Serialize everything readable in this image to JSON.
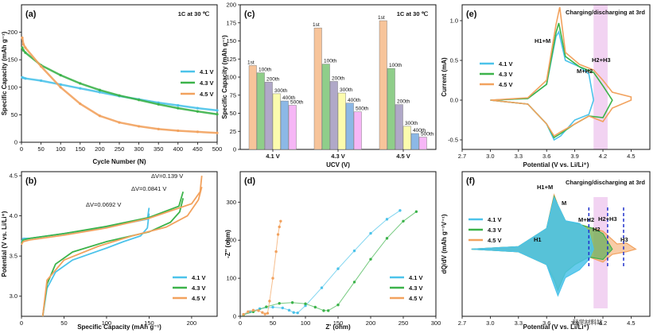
{
  "chart_data": [
    {
      "panel": "(a)",
      "type": "scatter",
      "annotation": "1C at 30 ℃",
      "xlabel": "Cycle Number (N)",
      "ylabel": "Specific Capacity (mAh g⁻¹)",
      "xlim": [
        0,
        500
      ],
      "ylim": [
        0,
        250
      ],
      "xticks": [
        "0",
        "50",
        "100",
        "150",
        "200",
        "250",
        "300",
        "350",
        "400",
        "450",
        "500"
      ],
      "yticks": [
        "0",
        "50",
        "100",
        "150",
        "200"
      ],
      "legend_position": "right",
      "series": [
        {
          "name": "4.1 V",
          "color": "#4cc3ea",
          "x": [
            2,
            5,
            10,
            50,
            100,
            150,
            200,
            250,
            300,
            350,
            400,
            450,
            500
          ],
          "y": [
            118,
            117,
            116,
            112,
            105,
            98,
            91,
            84,
            78,
            72,
            67,
            62,
            58
          ]
        },
        {
          "name": "4.3 V",
          "color": "#3cb34a",
          "x": [
            2,
            5,
            10,
            50,
            100,
            150,
            200,
            250,
            300,
            350,
            400,
            450,
            500
          ],
          "y": [
            172,
            167,
            163,
            140,
            122,
            107,
            95,
            85,
            77,
            69,
            62,
            56,
            51
          ]
        },
        {
          "name": "4.5 V",
          "color": "#f2a25e",
          "x": [
            2,
            5,
            10,
            50,
            100,
            150,
            200,
            250,
            300,
            350,
            400,
            450,
            500
          ],
          "y": [
            190,
            178,
            172,
            138,
            100,
            70,
            48,
            36,
            29,
            24,
            21,
            19,
            17
          ]
        }
      ]
    },
    {
      "panel": "(b)",
      "type": "line",
      "xlabel": "Specific Capacity (mAh g⁻¹)",
      "ylabel": "Potential (V vs. Li/Li⁺)",
      "xlim": [
        0,
        230
      ],
      "ylim": [
        2.75,
        4.55
      ],
      "xticks": [
        "0",
        "50",
        "100",
        "150",
        "200"
      ],
      "yticks": [
        "3.0",
        "3.5",
        "4.0",
        "4.5"
      ],
      "legend_position": "bottom-right",
      "annotations": [
        {
          "text": "ΔV=0.0692 V",
          "color": "#4cc3ea"
        },
        {
          "text": "ΔV=0.0841 V",
          "color": "#3cb34a"
        },
        {
          "text": "ΔV=0.139 V",
          "color": "#f2a25e"
        }
      ],
      "series": [
        {
          "name": "4.1 V",
          "color": "#4cc3ea",
          "charge": {
            "x": [
              0,
              2,
              10,
              50,
              100,
              148,
              150
            ],
            "y": [
              3.68,
              3.72,
              3.72,
              3.78,
              3.86,
              3.96,
              4.1
            ]
          },
          "discharge": {
            "x": [
              150,
              148,
              140,
              120,
              100,
              60,
              40,
              30,
              25
            ],
            "y": [
              4.03,
              3.85,
              3.75,
              3.68,
              3.6,
              3.45,
              3.3,
              3.1,
              2.75
            ]
          }
        },
        {
          "name": "4.3 V",
          "color": "#3cb34a",
          "charge": {
            "x": [
              0,
              2,
              10,
              50,
              100,
              150,
              185,
              190
            ],
            "y": [
              3.66,
              3.7,
              3.72,
              3.78,
              3.87,
              3.98,
              4.12,
              4.3
            ]
          },
          "discharge": {
            "x": [
              190,
              186,
              175,
              150,
              100,
              60,
              40,
              30,
              25
            ],
            "y": [
              4.22,
              4.05,
              3.92,
              3.8,
              3.68,
              3.55,
              3.4,
              3.15,
              2.75
            ]
          }
        },
        {
          "name": "4.5 V",
          "color": "#f2a25e",
          "charge": {
            "x": [
              0,
              2,
              10,
              50,
              100,
              150,
              200,
              210,
              212
            ],
            "y": [
              3.64,
              3.68,
              3.7,
              3.76,
              3.85,
              3.97,
              4.15,
              4.3,
              4.5
            ]
          },
          "discharge": {
            "x": [
              212,
              208,
              195,
              170,
              130,
              90,
              50,
              30,
              25
            ],
            "y": [
              4.36,
              4.2,
              4.0,
              3.86,
              3.75,
              3.62,
              3.45,
              3.2,
              2.75
            ]
          }
        }
      ]
    },
    {
      "panel": "(c)",
      "type": "bar",
      "annotation": "1C at 30 ℃",
      "xlabel": "UCV (V)",
      "ylabel": "Specific Capacity (mAh g⁻¹)",
      "ylim": [
        0,
        200
      ],
      "yticks": [
        "0",
        "25",
        "50",
        "75",
        "100",
        "125",
        "150",
        "175",
        "200"
      ],
      "categories": [
        "4.1 V",
        "4.3 V",
        "4.5 V"
      ],
      "bar_labels": [
        "1st",
        "100th",
        "200th",
        "300th",
        "400th",
        "500th"
      ],
      "series": [
        {
          "name": "1st",
          "color": "#f7c49a",
          "values": [
            116,
            168,
            178
          ]
        },
        {
          "name": "100th",
          "color": "#8fce8a",
          "values": [
            106,
            118,
            112
          ]
        },
        {
          "name": "200th",
          "color": "#b0a8c8",
          "values": [
            93,
            94,
            62
          ]
        },
        {
          "name": "300th",
          "color": "#fcfcae",
          "values": [
            77,
            78,
            32
          ]
        },
        {
          "name": "400th",
          "color": "#8cb8e6",
          "values": [
            67,
            64,
            22
          ]
        },
        {
          "name": "500th",
          "color": "#f6b6f6",
          "values": [
            61,
            52,
            17
          ]
        }
      ]
    },
    {
      "panel": "(d)",
      "type": "scatter",
      "xlabel": "Z' (ohm)",
      "ylabel": "-Z'' (ohm)",
      "xlim": [
        0,
        300
      ],
      "ylim": [
        0,
        380
      ],
      "xticks": [
        "0",
        "50",
        "100",
        "150",
        "200",
        "250",
        "300"
      ],
      "yticks": [
        "0",
        "100",
        "200",
        "300"
      ],
      "legend_position": "bottom-right",
      "series": [
        {
          "name": "4.1 V",
          "color": "#4cc3ea",
          "x": [
            5,
            15,
            30,
            50,
            65,
            75,
            82,
            88,
            100,
            125,
            150,
            175,
            200,
            225,
            245
          ],
          "y": [
            5,
            12,
            20,
            24,
            22,
            16,
            10,
            9,
            28,
            75,
            125,
            172,
            218,
            255,
            278
          ]
        },
        {
          "name": "4.3 V",
          "color": "#3cb34a",
          "x": [
            5,
            20,
            40,
            60,
            80,
            100,
            115,
            128,
            135,
            150,
            175,
            200,
            225,
            250,
            270
          ],
          "y": [
            4,
            12,
            25,
            34,
            36,
            33,
            24,
            15,
            15,
            30,
            90,
            150,
            205,
            250,
            275
          ]
        },
        {
          "name": "4.5 V",
          "color": "#f2a25e",
          "x": [
            5,
            12,
            20,
            28,
            34,
            38,
            42,
            45,
            50,
            55,
            58,
            60,
            62
          ],
          "y": [
            5,
            12,
            16,
            15,
            10,
            6,
            8,
            40,
            100,
            170,
            215,
            235,
            250
          ]
        }
      ]
    },
    {
      "panel": "(e)",
      "type": "line",
      "annotation": "Charging/discharging at 3rd",
      "xlabel": "Potential (V vs. Li/Li⁺)",
      "ylabel": "Current (mA)",
      "xlim": [
        2.7,
        4.7
      ],
      "ylim": [
        -0.62,
        1.2
      ],
      "xticks": [
        "2.7",
        "3.0",
        "3.3",
        "3.6",
        "3.9",
        "4.2",
        "4.5"
      ],
      "yticks": [
        "-0.5",
        "0.0",
        "0.5",
        "1.0"
      ],
      "legend_position": "right",
      "peak_labels": [
        "H1+M",
        "M+H2",
        "H2+H3"
      ],
      "highlight_band": [
        4.1,
        4.25
      ],
      "series": [
        {
          "name": "4.1 V",
          "color": "#4cc3ea",
          "x": [
            3.0,
            3.4,
            3.6,
            3.7,
            3.73,
            3.8,
            3.95,
            4.05,
            4.1,
            4.05,
            3.9,
            3.75,
            3.68,
            3.6,
            3.4,
            3.0
          ],
          "y": [
            0.0,
            0.02,
            0.2,
            0.8,
            0.86,
            0.5,
            0.42,
            0.33,
            0.0,
            -0.18,
            -0.25,
            -0.45,
            -0.5,
            -0.3,
            -0.05,
            0.0
          ]
        },
        {
          "name": "4.3 V",
          "color": "#3cb34a",
          "x": [
            3.0,
            3.4,
            3.6,
            3.7,
            3.73,
            3.8,
            3.95,
            4.1,
            4.2,
            4.3,
            4.2,
            4.05,
            3.9,
            3.75,
            3.68,
            3.6,
            3.4,
            3.0
          ],
          "y": [
            0.0,
            0.02,
            0.2,
            0.85,
            0.97,
            0.55,
            0.42,
            0.35,
            0.18,
            0.0,
            -0.22,
            -0.2,
            -0.3,
            -0.42,
            -0.47,
            -0.3,
            -0.05,
            0.0
          ]
        },
        {
          "name": "4.5 V",
          "color": "#f2a25e",
          "x": [
            3.0,
            3.4,
            3.6,
            3.7,
            3.74,
            3.8,
            3.95,
            4.1,
            4.2,
            4.3,
            4.5,
            4.5,
            4.3,
            4.2,
            4.05,
            3.9,
            3.75,
            3.68,
            3.6,
            3.4,
            3.0
          ],
          "y": [
            0.0,
            0.03,
            0.25,
            0.95,
            1.17,
            0.6,
            0.45,
            0.38,
            0.25,
            0.1,
            0.04,
            0.0,
            -0.1,
            -0.27,
            -0.2,
            -0.3,
            -0.4,
            -0.45,
            -0.3,
            -0.05,
            0.0
          ]
        }
      ]
    },
    {
      "panel": "(f)",
      "type": "area",
      "annotation": "Charging/discharging at 3rd",
      "xlabel": "Potential (V vs. Li/Li⁺)",
      "ylabel": "dQ/dV (mAh g⁻¹V⁻¹)",
      "xlim": [
        2.7,
        4.7
      ],
      "xticks": [
        "2.7",
        "3.0",
        "3.3",
        "3.6",
        "3.9",
        "4.2",
        "4.5"
      ],
      "legend_position": "left",
      "peak_labels": [
        "H1+M",
        "M",
        "M+H2",
        "H2+H3",
        "H1",
        "H2",
        "H3"
      ],
      "highlight_band": [
        4.1,
        4.25
      ],
      "series": [
        {
          "name": "4.1 V",
          "color": "#4cc3ea",
          "x": [
            2.8,
            3.3,
            3.6,
            3.68,
            3.72,
            3.8,
            3.95,
            4.05,
            4.1,
            4.05,
            3.95,
            3.8,
            3.72,
            3.68,
            3.6,
            3.3,
            2.8
          ],
          "y": [
            0.0,
            0.05,
            0.4,
            1.0,
            0.85,
            0.55,
            0.5,
            0.35,
            0.0,
            -0.2,
            -0.4,
            -0.55,
            -0.9,
            -0.7,
            -0.3,
            -0.05,
            0.0
          ]
        },
        {
          "name": "4.3 V",
          "color": "#3cb34a",
          "x": [
            2.8,
            3.3,
            3.6,
            3.68,
            3.72,
            3.8,
            3.95,
            4.1,
            4.2,
            4.3,
            4.2,
            4.05,
            3.9,
            3.8,
            3.72,
            3.68,
            3.6,
            3.3,
            2.8
          ],
          "y": [
            0.0,
            0.05,
            0.4,
            1.02,
            0.85,
            0.55,
            0.48,
            0.4,
            0.3,
            0.0,
            -0.2,
            -0.15,
            -0.3,
            -0.45,
            -0.8,
            -0.6,
            -0.3,
            -0.05,
            0.0
          ]
        },
        {
          "name": "4.5 V",
          "color": "#f2a25e",
          "x": [
            2.8,
            3.3,
            3.6,
            3.68,
            3.72,
            3.8,
            3.95,
            4.1,
            4.2,
            4.35,
            4.45,
            4.55,
            4.45,
            4.3,
            4.2,
            4.05,
            3.9,
            3.8,
            3.72,
            3.68,
            3.6,
            3.3,
            2.8
          ],
          "y": [
            0.0,
            0.05,
            0.4,
            1.05,
            0.85,
            0.55,
            0.48,
            0.4,
            0.35,
            0.1,
            0.12,
            0.0,
            -0.05,
            -0.1,
            -0.25,
            -0.15,
            -0.3,
            -0.45,
            -0.75,
            -0.55,
            -0.3,
            -0.05,
            0.0
          ]
        }
      ]
    }
  ],
  "watermark_text": "科学材料站"
}
